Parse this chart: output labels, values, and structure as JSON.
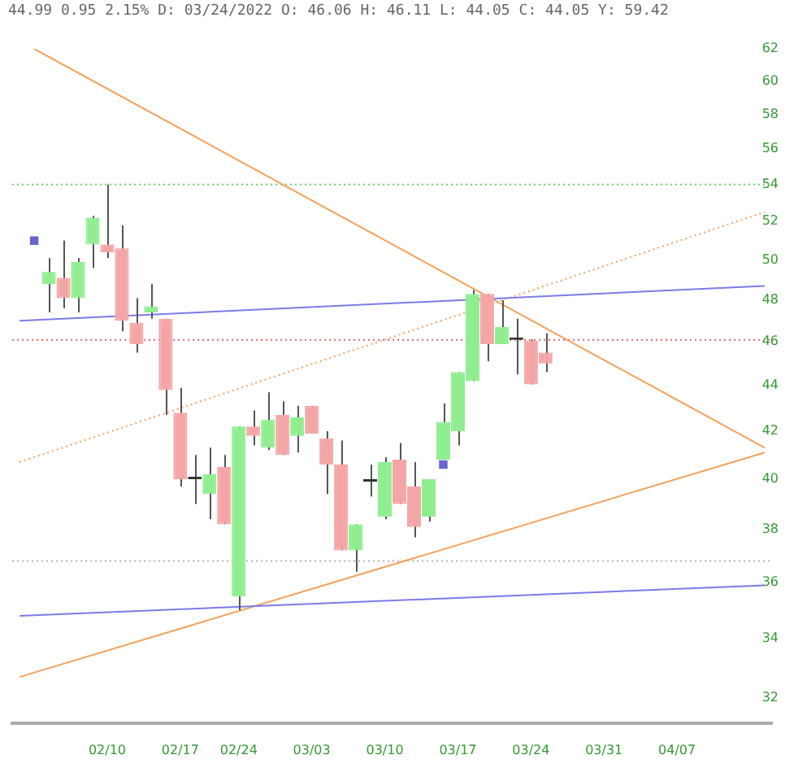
{
  "chart_data": {
    "type": "candlestick",
    "title": "44.99 0.95 2.15% D: 03/24/2022 O: 46.06 H: 46.11 L: 44.05 C: 44.05 Y: 59.42",
    "categories": [
      null,
      null,
      null,
      null,
      null,
      null,
      "02/10",
      null,
      null,
      null,
      null,
      "02/17",
      null,
      null,
      null,
      "02/24",
      null,
      null,
      null,
      null,
      "03/03",
      null,
      null,
      null,
      null,
      "03/10",
      null,
      null,
      null,
      null,
      "03/17",
      null,
      null,
      null,
      null,
      "03/24",
      null,
      null,
      null,
      null,
      "03/31",
      null,
      null,
      null,
      null,
      "04/07",
      null,
      null,
      null,
      null,
      null,
      null
    ],
    "log": true,
    "ylim": [
      31.2,
      62
    ],
    "yticks": [
      32,
      34,
      36,
      38,
      40,
      42,
      44,
      46,
      48,
      50,
      52,
      54,
      56,
      58,
      60,
      62
    ],
    "ref_lines": [
      {
        "axis": "y",
        "value": 54,
        "color": "#66cc66",
        "line_style": "dotted"
      },
      {
        "axis": "y",
        "value": 46.1,
        "color": "#e06060",
        "line_style": "dotted"
      },
      {
        "axis": "y",
        "value": 36.8,
        "color": "#b0b0b0",
        "line_style": "dotted"
      }
    ],
    "series": [
      {
        "type": "line",
        "color": "#7b7be8",
        "line_style": "solid",
        "values": [
          47.0,
          null,
          null,
          null,
          null,
          null,
          null,
          null,
          null,
          null,
          null,
          null,
          null,
          null,
          null,
          null,
          null,
          null,
          null,
          null,
          null,
          null,
          null,
          null,
          null,
          null,
          null,
          null,
          null,
          null,
          null,
          null,
          null,
          null,
          null,
          null,
          null,
          null,
          null,
          null,
          null,
          null,
          null,
          null,
          null,
          null,
          null,
          null,
          null,
          null,
          null,
          48.7
        ]
      },
      {
        "type": "line",
        "color": "#7b7be8",
        "line_style": "solid",
        "values": [
          34.8,
          null,
          null,
          null,
          null,
          null,
          null,
          null,
          null,
          null,
          null,
          null,
          null,
          null,
          null,
          null,
          null,
          null,
          null,
          null,
          null,
          null,
          null,
          null,
          null,
          null,
          null,
          null,
          null,
          null,
          null,
          null,
          null,
          null,
          null,
          null,
          null,
          null,
          null,
          null,
          null,
          null,
          null,
          null,
          null,
          null,
          null,
          null,
          null,
          null,
          null,
          35.9
        ]
      },
      {
        "type": "line",
        "color": "#f5a05a",
        "line_style": "solid",
        "values": [
          null,
          62.0,
          null,
          null,
          null,
          null,
          null,
          null,
          null,
          null,
          null,
          null,
          null,
          null,
          null,
          null,
          null,
          null,
          null,
          null,
          null,
          null,
          null,
          null,
          null,
          null,
          null,
          null,
          null,
          null,
          null,
          null,
          null,
          null,
          null,
          null,
          null,
          null,
          null,
          null,
          null,
          null,
          null,
          null,
          null,
          null,
          null,
          null,
          null,
          null,
          null,
          41.3
        ]
      },
      {
        "type": "line",
        "color": "#f5a05a",
        "line_style": "solid",
        "values": [
          32.7,
          null,
          null,
          null,
          null,
          null,
          null,
          null,
          null,
          null,
          null,
          null,
          null,
          null,
          null,
          null,
          null,
          null,
          null,
          null,
          null,
          null,
          null,
          null,
          null,
          null,
          null,
          null,
          null,
          null,
          null,
          null,
          null,
          null,
          null,
          null,
          null,
          null,
          null,
          null,
          null,
          null,
          null,
          null,
          null,
          null,
          null,
          null,
          null,
          null,
          null,
          41.1
        ]
      },
      {
        "type": "line",
        "color": "#f5a05a",
        "line_style": "dotted",
        "values": [
          40.7,
          null,
          null,
          null,
          null,
          null,
          null,
          null,
          null,
          null,
          null,
          null,
          null,
          null,
          null,
          null,
          null,
          null,
          null,
          null,
          null,
          null,
          null,
          null,
          null,
          null,
          null,
          null,
          null,
          null,
          null,
          null,
          null,
          null,
          null,
          null,
          null,
          null,
          null,
          null,
          null,
          null,
          null,
          null,
          null,
          null,
          null,
          null,
          null,
          null,
          null,
          52.5
        ]
      },
      {
        "type": "scatter",
        "color": "#6666cc",
        "marker": "square",
        "values": [
          null,
          51.0,
          null,
          null,
          null,
          null,
          null,
          null,
          null,
          null,
          null,
          null,
          null,
          null,
          null,
          null,
          null,
          null,
          null,
          null,
          null,
          null,
          null,
          null,
          null,
          null,
          null,
          null,
          null,
          40.6,
          null,
          null,
          null,
          null,
          null,
          null,
          null,
          null,
          null,
          null,
          null,
          null,
          null,
          null,
          null,
          null,
          null,
          null,
          null,
          null,
          null,
          null
        ]
      },
      {
        "ohlc": [
          null,
          null,
          [
            48.8,
            50.1,
            47.4,
            49.4
          ],
          [
            49.1,
            51.0,
            47.6,
            48.1
          ],
          [
            48.1,
            50.1,
            47.4,
            49.9
          ],
          [
            50.8,
            52.3,
            49.6,
            52.2
          ],
          [
            50.8,
            54.0,
            50.1,
            50.4
          ],
          [
            50.6,
            51.8,
            46.5,
            47.0
          ],
          [
            46.9,
            48.1,
            45.5,
            45.9
          ],
          [
            47.4,
            48.8,
            47.1,
            47.7
          ],
          [
            47.1,
            47.1,
            42.7,
            43.8
          ],
          [
            42.8,
            43.9,
            39.7,
            40.0
          ],
          [
            40.0,
            41.0,
            39.0,
            40.0
          ],
          [
            39.4,
            41.3,
            38.4,
            40.2
          ],
          [
            40.5,
            41.0,
            38.2,
            38.2
          ],
          [
            35.5,
            42.2,
            35.0,
            42.2
          ],
          [
            42.2,
            42.9,
            41.4,
            41.8
          ],
          [
            41.3,
            43.7,
            41.2,
            42.5
          ],
          [
            42.7,
            43.3,
            41.0,
            41.0
          ],
          [
            41.8,
            43.1,
            41.1,
            42.6
          ],
          [
            43.1,
            43.1,
            41.9,
            41.9
          ],
          [
            41.7,
            42.0,
            39.4,
            40.6
          ],
          [
            40.6,
            41.6,
            37.2,
            37.2
          ],
          [
            37.2,
            38.2,
            36.4,
            38.2
          ],
          [
            39.9,
            40.6,
            39.3,
            39.9
          ],
          [
            38.5,
            40.9,
            38.4,
            40.7
          ],
          [
            40.8,
            41.5,
            39.0,
            39.0
          ],
          [
            39.7,
            40.7,
            37.7,
            38.1
          ],
          [
            38.5,
            40.0,
            38.3,
            40.0
          ],
          [
            40.8,
            43.2,
            40.8,
            42.4
          ],
          [
            42.0,
            44.6,
            41.4,
            44.6
          ],
          [
            44.2,
            48.5,
            44.2,
            48.3
          ],
          [
            48.3,
            48.3,
            45.1,
            45.9
          ],
          [
            45.9,
            48.0,
            45.9,
            46.7
          ],
          [
            46.1,
            47.1,
            44.5,
            46.1
          ],
          [
            46.06,
            46.11,
            44.05,
            44.05
          ],
          [
            45.5,
            46.4,
            44.6,
            45.0
          ],
          null,
          null,
          null,
          null,
          null,
          null,
          null,
          null,
          null,
          null,
          null,
          null,
          null,
          null,
          null
        ],
        "colors": [
          null,
          null,
          "#90ee90",
          "#f4a6a6",
          "#90ee90",
          "#90ee90",
          "#f4a6a6",
          "#f4a6a6",
          "#f4a6a6",
          "#90ee90",
          "#f4a6a6",
          "#f4a6a6",
          "#333333",
          "#90ee90",
          "#f4a6a6",
          "#90ee90",
          "#f4a6a6",
          "#90ee90",
          "#f4a6a6",
          "#90ee90",
          "#f4a6a6",
          "#f4a6a6",
          "#f4a6a6",
          "#90ee90",
          "#333333",
          "#90ee90",
          "#f4a6a6",
          "#f4a6a6",
          "#90ee90",
          "#90ee90",
          "#90ee90",
          "#90ee90",
          "#f4a6a6",
          "#90ee90",
          "#333333",
          "#f4a6a6",
          "#f4a6a6",
          null,
          null,
          null,
          null,
          null,
          null,
          null,
          null,
          null,
          null,
          null,
          null,
          null,
          null,
          null
        ]
      }
    ]
  }
}
